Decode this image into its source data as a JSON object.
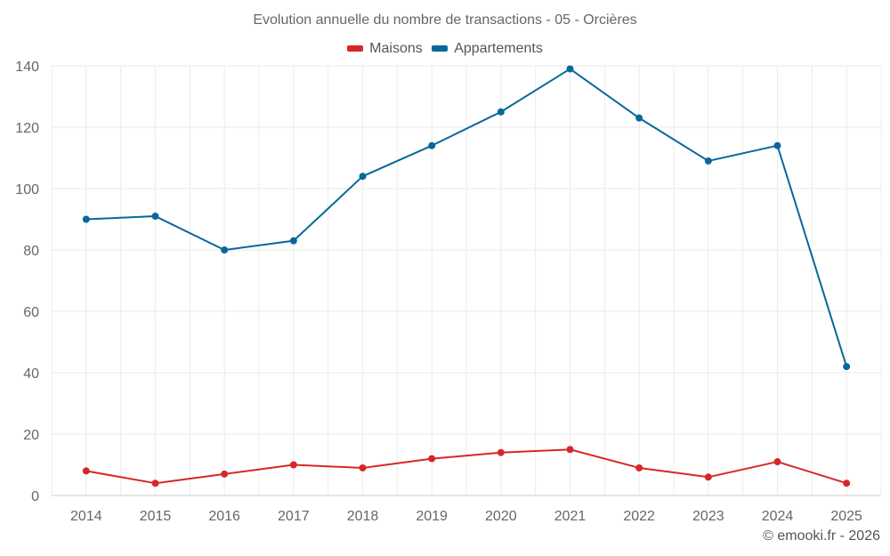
{
  "chart_data": {
    "type": "line",
    "title": "Evolution annuelle du nombre de transactions - 05 - Orcières",
    "xlabel": "",
    "ylabel": "",
    "categories": [
      "2014",
      "2015",
      "2016",
      "2017",
      "2018",
      "2019",
      "2020",
      "2021",
      "2022",
      "2023",
      "2024",
      "2025"
    ],
    "series": [
      {
        "name": "Maisons",
        "color": "#d62728",
        "values": [
          8,
          4,
          7,
          10,
          9,
          12,
          14,
          15,
          9,
          6,
          11,
          4
        ]
      },
      {
        "name": "Appartements",
        "color": "#08679c",
        "values": [
          90,
          91,
          80,
          83,
          104,
          114,
          125,
          139,
          123,
          109,
          114,
          42
        ]
      }
    ],
    "ylim": [
      0,
      140
    ],
    "yticks": [
      0,
      20,
      40,
      60,
      80,
      100,
      120,
      140
    ],
    "grid": true,
    "legend_position": "top-center"
  },
  "credit": "© emooki.fr - 2026"
}
